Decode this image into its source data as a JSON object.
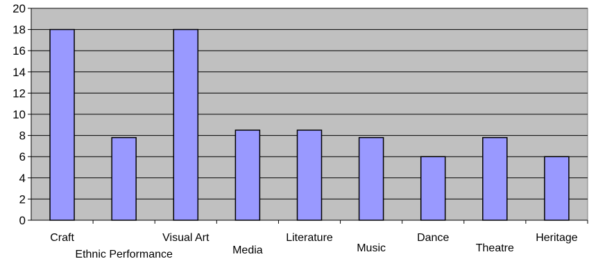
{
  "chart_data": {
    "type": "bar",
    "categories": [
      "Craft",
      "Ethnic Performance",
      "Visual Art",
      "Media",
      "Literature",
      "Music",
      "Dance",
      "Theatre",
      "Heritage"
    ],
    "values": [
      18,
      7.8,
      18,
      8.5,
      8.5,
      7.8,
      6,
      7.8,
      6
    ],
    "title": "",
    "xlabel": "",
    "ylabel": "",
    "ylim": [
      0,
      20
    ],
    "yticks": [
      0,
      2,
      4,
      6,
      8,
      10,
      12,
      14,
      16,
      18,
      20
    ],
    "grid": true,
    "legend": "none",
    "colors": {
      "bar_fill": "#9999ff",
      "bar_stroke": "#000000",
      "plot_background": "#c0c0c0",
      "gridline": "#000000"
    }
  }
}
